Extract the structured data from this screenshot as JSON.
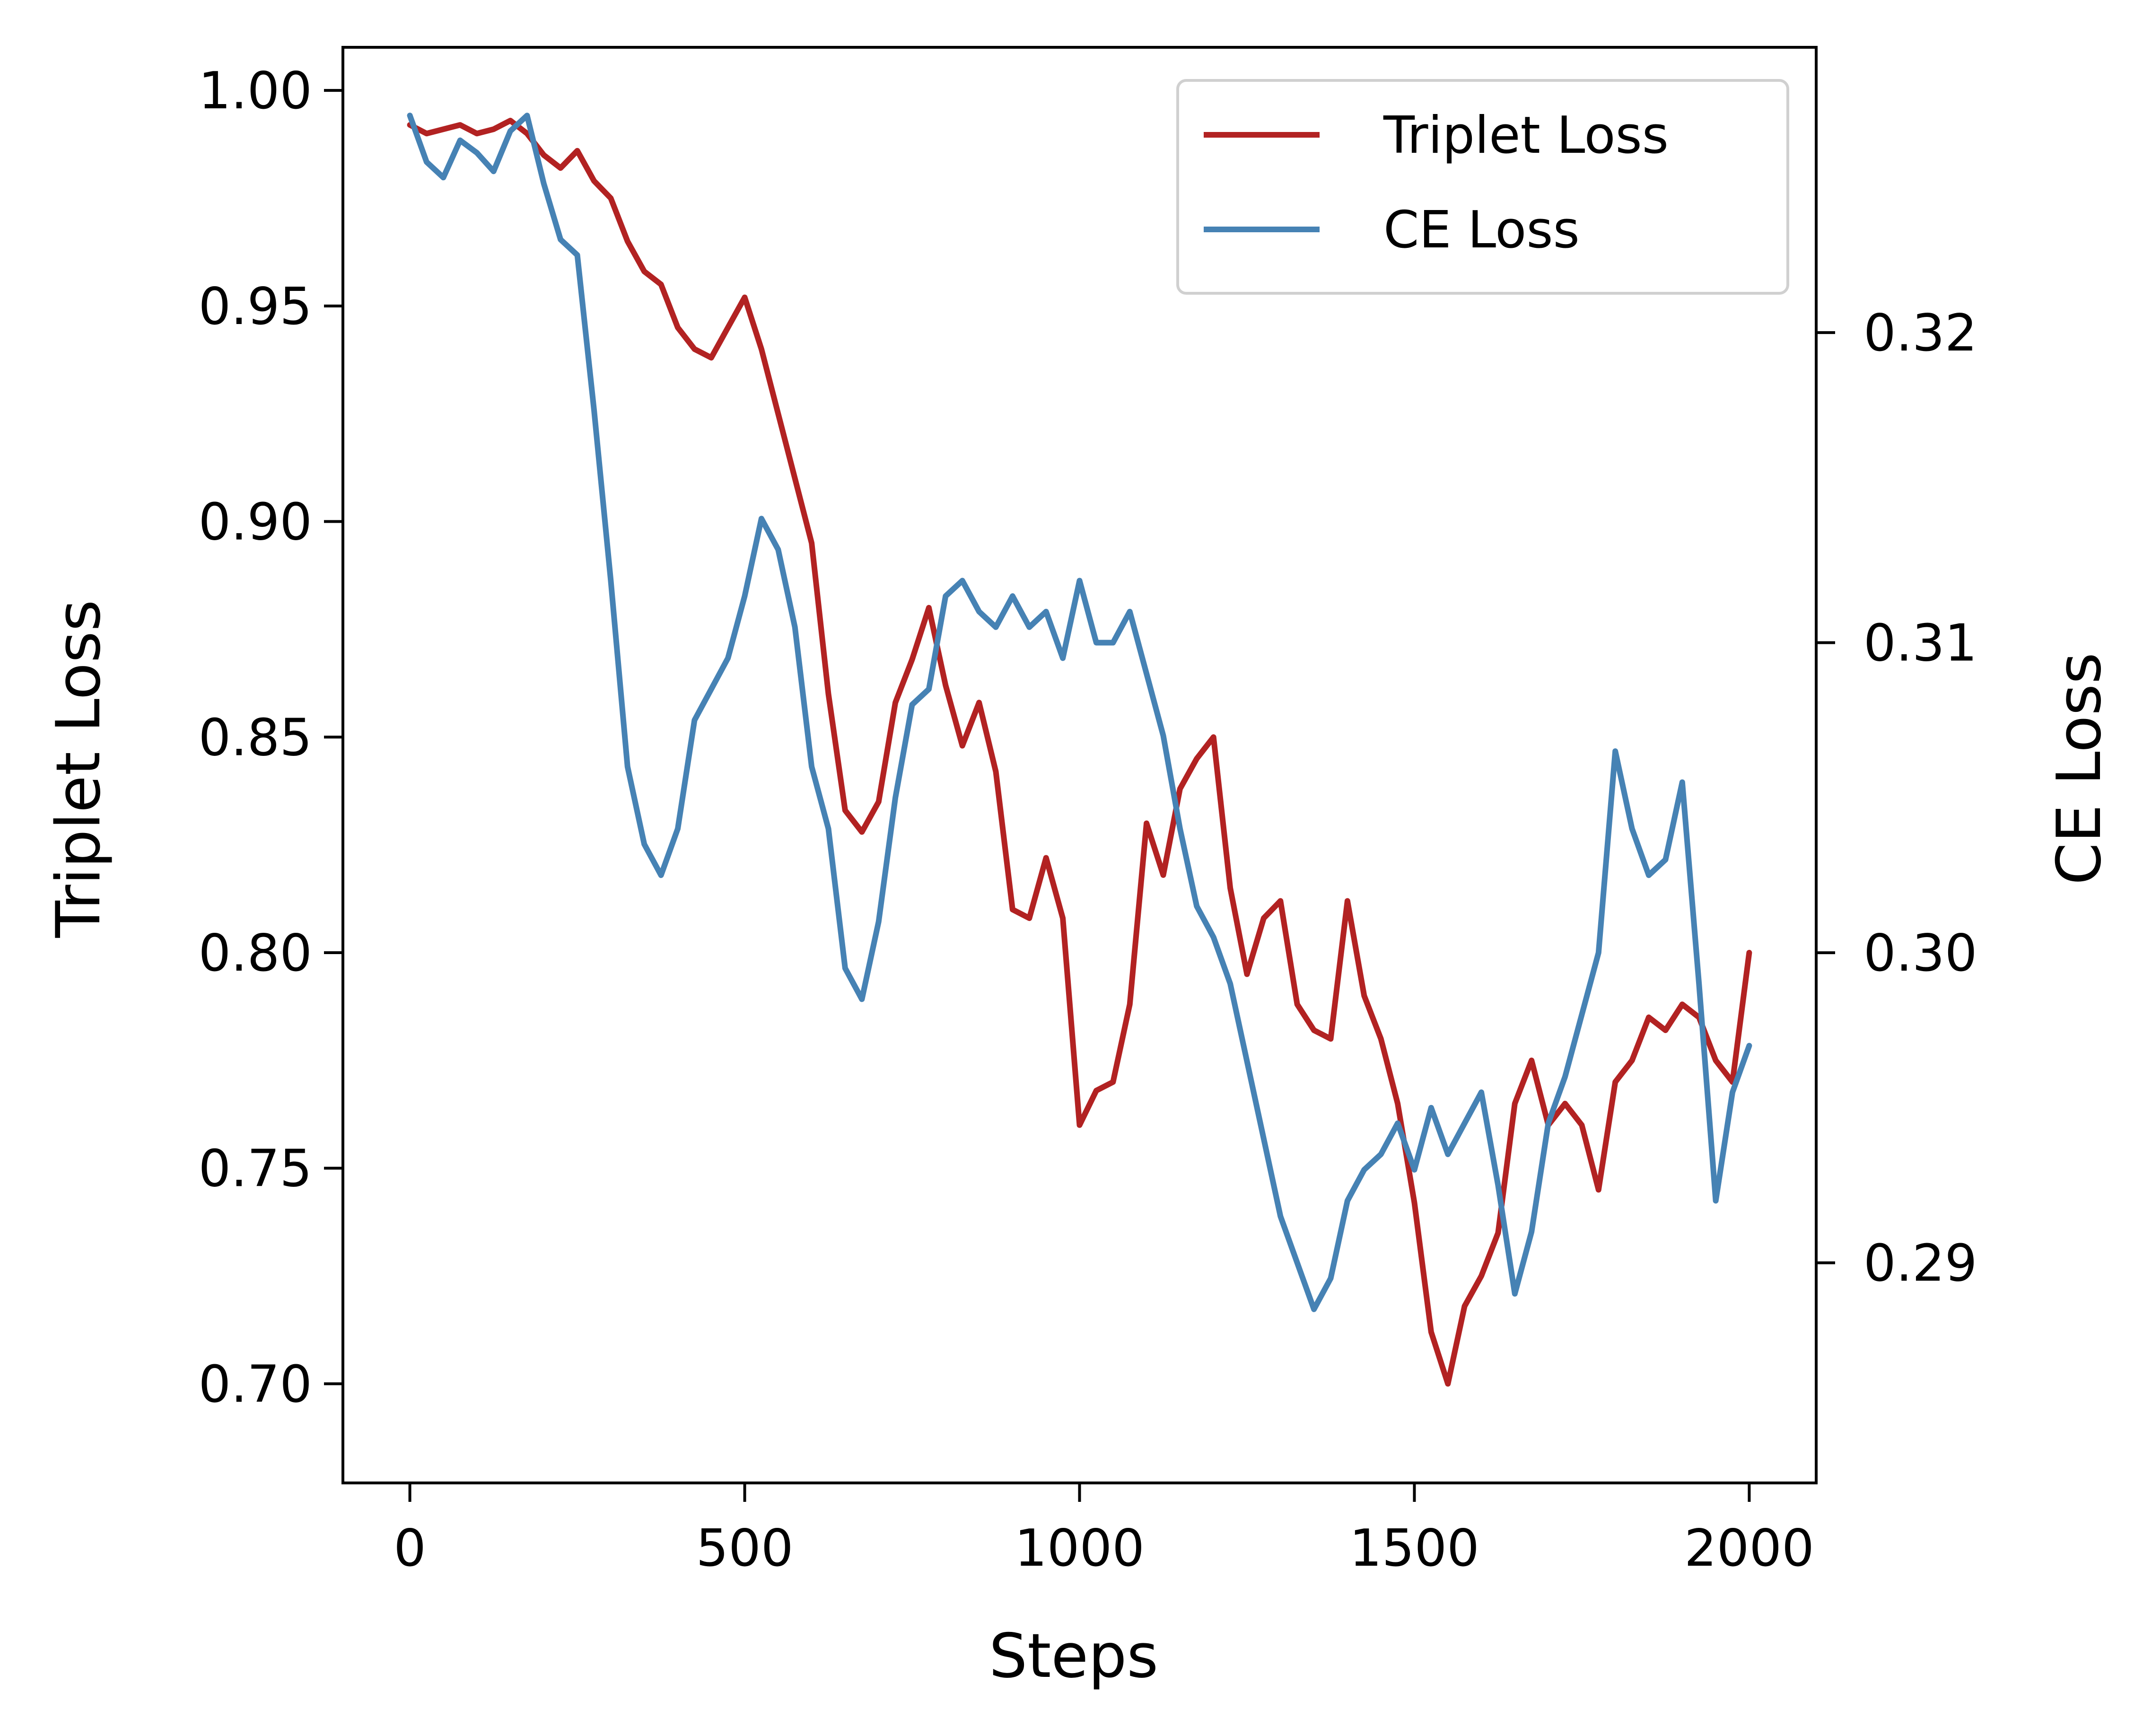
{
  "chart_data": {
    "type": "line",
    "title": "",
    "xlabel": "Steps",
    "ylabel": "Triplet Loss",
    "y2label": "CE Loss",
    "xlim": [
      -100,
      2100
    ],
    "ylim": [
      0.677,
      1.01
    ],
    "y2lim": [
      0.2829,
      0.3292
    ],
    "xticks": [
      0,
      500,
      1000,
      1500,
      2000
    ],
    "yticks": [
      0.7,
      0.75,
      0.8,
      0.85,
      0.9,
      0.95,
      1.0
    ],
    "y2ticks": [
      0.29,
      0.3,
      0.31,
      0.32
    ],
    "grid": false,
    "legend_position": "upper right",
    "series": [
      {
        "name": "Triplet Loss",
        "axis": "left",
        "color": "#b22222",
        "x": [
          0,
          25,
          50,
          75,
          100,
          125,
          150,
          175,
          200,
          225,
          250,
          275,
          300,
          325,
          350,
          375,
          400,
          425,
          450,
          475,
          500,
          525,
          550,
          575,
          600,
          625,
          650,
          675,
          700,
          725,
          750,
          775,
          800,
          825,
          850,
          875,
          900,
          925,
          950,
          975,
          1000,
          1025,
          1050,
          1075,
          1100,
          1125,
          1150,
          1175,
          1200,
          1225,
          1250,
          1275,
          1300,
          1325,
          1350,
          1375,
          1400,
          1425,
          1450,
          1475,
          1500,
          1525,
          1550,
          1575,
          1600,
          1625,
          1650,
          1675,
          1700,
          1725,
          1750,
          1775,
          1800,
          1825,
          1850,
          1875,
          1900,
          1925,
          1950,
          1975,
          2000
        ],
        "y": [
          0.992,
          0.99,
          0.991,
          0.992,
          0.99,
          0.991,
          0.993,
          0.99,
          0.985,
          0.982,
          0.986,
          0.979,
          0.975,
          0.965,
          0.958,
          0.955,
          0.945,
          0.94,
          0.938,
          0.945,
          0.952,
          0.94,
          0.925,
          0.91,
          0.895,
          0.86,
          0.833,
          0.828,
          0.835,
          0.858,
          0.868,
          0.88,
          0.862,
          0.848,
          0.858,
          0.842,
          0.81,
          0.808,
          0.822,
          0.808,
          0.76,
          0.768,
          0.77,
          0.788,
          0.83,
          0.818,
          0.838,
          0.845,
          0.85,
          0.815,
          0.795,
          0.808,
          0.812,
          0.788,
          0.782,
          0.78,
          0.812,
          0.79,
          0.78,
          0.765,
          0.742,
          0.712,
          0.7,
          0.718,
          0.725,
          0.735,
          0.765,
          0.775,
          0.76,
          0.765,
          0.76,
          0.745,
          0.77,
          0.775,
          0.785,
          0.782,
          0.788,
          0.785,
          0.775,
          0.77,
          0.8
        ]
      },
      {
        "name": "CE Loss",
        "axis": "right",
        "color": "#4682b4",
        "x": [
          0,
          25,
          50,
          75,
          100,
          125,
          150,
          175,
          200,
          225,
          250,
          275,
          300,
          325,
          350,
          375,
          400,
          425,
          450,
          475,
          500,
          525,
          550,
          575,
          600,
          625,
          650,
          675,
          700,
          725,
          750,
          775,
          800,
          825,
          850,
          875,
          900,
          925,
          950,
          975,
          1000,
          1025,
          1050,
          1075,
          1100,
          1125,
          1150,
          1175,
          1200,
          1225,
          1250,
          1275,
          1300,
          1325,
          1350,
          1375,
          1400,
          1425,
          1450,
          1475,
          1500,
          1525,
          1550,
          1575,
          1600,
          1625,
          1650,
          1675,
          1700,
          1725,
          1750,
          1775,
          1800,
          1825,
          1850,
          1875,
          1900,
          1925,
          1950,
          1975,
          2000
        ],
        "y": [
          0.327,
          0.3255,
          0.325,
          0.3262,
          0.3258,
          0.3252,
          0.3265,
          0.327,
          0.3248,
          0.323,
          0.3225,
          0.3175,
          0.312,
          0.306,
          0.3035,
          0.3025,
          0.304,
          0.3075,
          0.3085,
          0.3095,
          0.3115,
          0.314,
          0.313,
          0.3105,
          0.306,
          0.304,
          0.2995,
          0.2985,
          0.301,
          0.305,
          0.308,
          0.3085,
          0.3115,
          0.312,
          0.311,
          0.3105,
          0.3115,
          0.3105,
          0.311,
          0.3095,
          0.312,
          0.31,
          0.31,
          0.311,
          0.309,
          0.307,
          0.304,
          0.3015,
          0.3005,
          0.299,
          0.2965,
          0.294,
          0.2915,
          0.29,
          0.2885,
          0.2895,
          0.292,
          0.293,
          0.2935,
          0.2945,
          0.293,
          0.295,
          0.2935,
          0.2945,
          0.2955,
          0.2925,
          0.289,
          0.291,
          0.2945,
          0.296,
          0.298,
          0.3,
          0.3065,
          0.304,
          0.3025,
          0.303,
          0.3055,
          0.299,
          0.292,
          0.2955,
          0.297
        ]
      }
    ]
  }
}
